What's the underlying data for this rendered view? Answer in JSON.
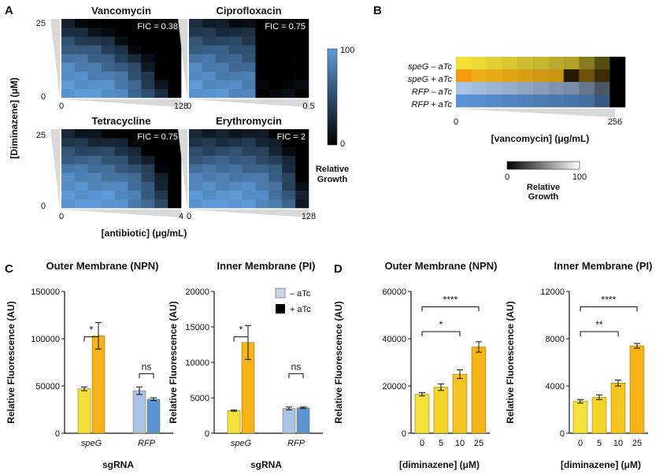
{
  "panels": {
    "A": "A",
    "B": "B",
    "C": "C",
    "D": "D"
  },
  "colors": {
    "yellow": "#f6e13a",
    "orange": "#f5b318",
    "light_blue": "#a9c3e6",
    "blue": "#5b93d3",
    "hm_high": "#5e9ad8",
    "hm_low": "#000000"
  },
  "panel_a": {
    "y_label": "[Diminazene] (μM)",
    "x_label": "[antibiotic] (μg/mL)",
    "y_ticks": [
      "25",
      "0"
    ],
    "colorbar": {
      "max": "100",
      "min": "0",
      "label_1": "Relative",
      "label_2": "Growth"
    },
    "heatmaps": [
      {
        "title": "Vancomycin",
        "fic": "FIC = 0.38",
        "x_min": "0",
        "x_max": "128"
      },
      {
        "title": "Ciprofloxacin",
        "fic": "FIC = 0.75",
        "x_min": "0",
        "x_max": "0.5"
      },
      {
        "title": "Tetracycline",
        "fic": "FIC = 0.75",
        "x_min": "0",
        "x_max": "4"
      },
      {
        "title": "Erythromycin",
        "fic": "FIC = 2",
        "x_min": "0",
        "x_max": "128"
      }
    ]
  },
  "panel_b": {
    "rows": [
      "speG – aTc",
      "speG + aTc",
      "RFP – aTc",
      "RFP + aTc"
    ],
    "x_min": "0",
    "x_max": "256",
    "x_label": "[vancomycin] (μg/mL)",
    "colorbar": {
      "min": "0",
      "max": "100",
      "label_1": "Relative",
      "label_2": "Growth"
    }
  },
  "panel_c": {
    "legend": {
      "minus": "– aTc",
      "plus": "+ aTc"
    },
    "x_label": "sgRNA",
    "significance": {
      "speG": "*",
      "RFP": "ns"
    }
  },
  "panel_d": {
    "x_label": "[diminazene] (μM)",
    "significance": {
      "outer_10": "*",
      "outer_25": "****",
      "inner_10": "**",
      "inner_25": "****"
    }
  },
  "chart_data": [
    {
      "type": "heatmap",
      "title": "Vancomycin",
      "annotation": "FIC = 0.38",
      "ylabel": "[Diminazene] (μM)",
      "xlabel": "[antibiotic] (μg/mL)",
      "x_range": [
        0,
        128
      ],
      "y_range": [
        0,
        25
      ],
      "colorbar": {
        "label": "Relative Growth",
        "range": [
          0,
          100
        ]
      },
      "grid_size": [
        9,
        9
      ]
    },
    {
      "type": "heatmap",
      "title": "Ciprofloxacin",
      "annotation": "FIC = 0.75",
      "x_range": [
        0,
        0.5
      ],
      "y_range": [
        0,
        25
      ],
      "grid_size": [
        9,
        9
      ]
    },
    {
      "type": "heatmap",
      "title": "Tetracycline",
      "annotation": "FIC = 0.75",
      "x_range": [
        0,
        4
      ],
      "y_range": [
        0,
        25
      ],
      "grid_size": [
        9,
        9
      ]
    },
    {
      "type": "heatmap",
      "title": "Erythromycin",
      "annotation": "FIC = 2",
      "x_range": [
        0,
        128
      ],
      "y_range": [
        0,
        25
      ],
      "grid_size": [
        9,
        9
      ]
    },
    {
      "type": "heatmap",
      "rows": [
        "speG – aTc",
        "speG + aTc",
        "RFP – aTc",
        "RFP + aTc"
      ],
      "xlabel": "[vancomycin] (μg/mL)",
      "x_range": [
        0,
        256
      ],
      "colorbar": {
        "label": "Relative Growth",
        "range": [
          0,
          100
        ]
      }
    },
    {
      "type": "bar",
      "title": "Outer Membrane (NPN)",
      "ylabel": "Relative Fluorescence (AU)",
      "xlabel": "sgRNA",
      "categories": [
        "speG",
        "RFP"
      ],
      "series": [
        {
          "name": "– aTc",
          "values": [
            47000,
            45000
          ],
          "errors": [
            2000,
            4000
          ]
        },
        {
          "name": "+ aTc",
          "values": [
            103000,
            36000
          ],
          "errors": [
            14000,
            1500
          ]
        }
      ],
      "ylim": [
        0,
        150000
      ],
      "yticks": [
        "0",
        "50000",
        "100000",
        "150000"
      ]
    },
    {
      "type": "bar",
      "title": "Inner Membrane (PI)",
      "ylabel": "Relative Fluorescence (AU)",
      "xlabel": "sgRNA",
      "categories": [
        "speG",
        "RFP"
      ],
      "series": [
        {
          "name": "– aTc",
          "values": [
            3200,
            3500
          ],
          "errors": [
            100,
            200
          ]
        },
        {
          "name": "+ aTc",
          "values": [
            12800,
            3600
          ],
          "errors": [
            2400,
            100
          ]
        }
      ],
      "ylim": [
        0,
        20000
      ],
      "yticks": [
        "0",
        "5000",
        "10000",
        "15000",
        "20000"
      ]
    },
    {
      "type": "bar",
      "title": "Outer Membrane (NPN)",
      "ylabel": "Relative Fluorescence (AU)",
      "xlabel": "[diminazene] (μM)",
      "categories": [
        "0",
        "5",
        "10",
        "25"
      ],
      "values": [
        16500,
        19500,
        25000,
        36500
      ],
      "errors": [
        700,
        1400,
        1800,
        2200
      ],
      "ylim": [
        0,
        60000
      ],
      "yticks": [
        "0",
        "20000",
        "40000",
        "60000"
      ]
    },
    {
      "type": "bar",
      "title": "Inner Membrane (PI)",
      "ylabel": "Relative Fluorescence (AU)",
      "xlabel": "[diminazene] (μM)",
      "categories": [
        "0",
        "5",
        "10",
        "25"
      ],
      "values": [
        2700,
        3050,
        4250,
        7400
      ],
      "errors": [
        150,
        200,
        250,
        200
      ],
      "ylim": [
        0,
        12000
      ],
      "yticks": [
        "0",
        "4000",
        "8000",
        "12000"
      ]
    }
  ]
}
